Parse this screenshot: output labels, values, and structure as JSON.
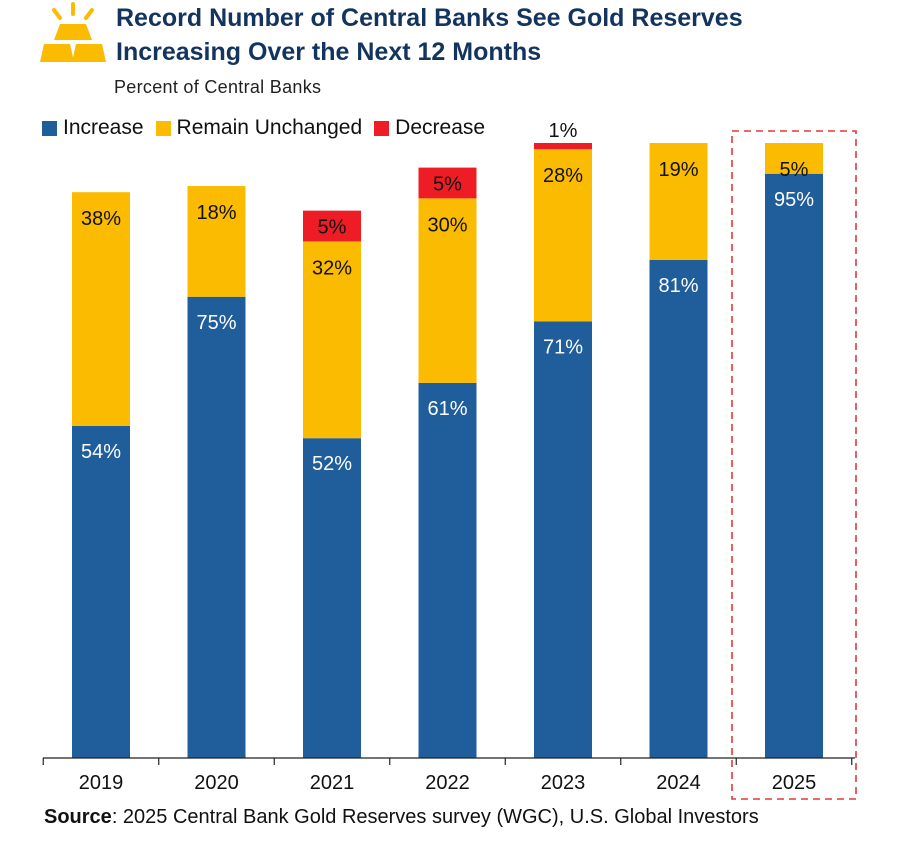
{
  "title_line1": "Record Number of Central Banks See Gold Reserves",
  "title_line2": "Increasing Over the Next 12 Months",
  "subtitle": "Percent of Central Banks",
  "icon": "gold-bars-icon",
  "source_label": "Source",
  "source_text": ": 2025 Central Bank Gold Reserves survey (WGC), U.S. Global Investors",
  "colors": {
    "increase": "#1f5d9b",
    "unchanged": "#fbbb00",
    "decrease": "#ee1c25",
    "title": "#13345f",
    "highlight_box": "#e03a3a"
  },
  "chart_data": {
    "type": "bar",
    "stacked": true,
    "categories": [
      "2019",
      "2020",
      "2021",
      "2022",
      "2023",
      "2024",
      "2025"
    ],
    "series": [
      {
        "name": "Increase",
        "values": [
          54,
          75,
          52,
          61,
          71,
          81,
          95
        ],
        "labels": [
          "54%",
          "75%",
          "52%",
          "61%",
          "71%",
          "81%",
          "95%"
        ]
      },
      {
        "name": "Remain Unchanged",
        "values": [
          38,
          18,
          32,
          30,
          28,
          19,
          5
        ],
        "labels": [
          "38%",
          "18%",
          "32%",
          "30%",
          "28%",
          "19%",
          "5%"
        ]
      },
      {
        "name": "Decrease",
        "values": [
          0,
          0,
          5,
          5,
          1,
          0,
          0
        ],
        "labels": [
          "",
          "",
          "5%",
          "5%",
          "1%",
          "",
          ""
        ]
      }
    ],
    "ylim": [
      0,
      100
    ],
    "highlight_category": "2025",
    "legend_position": "top-left",
    "grid": false
  }
}
